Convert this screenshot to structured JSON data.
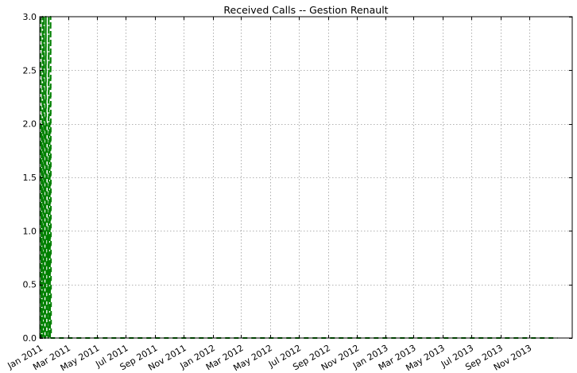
{
  "chart_data": {
    "type": "line",
    "title": "Received Calls -- Gestion Renault",
    "xlabel": "",
    "ylabel": "",
    "x_type": "date",
    "xlim": [
      "2010-12-31",
      "2014-01-31"
    ],
    "ylim": [
      0,
      3
    ],
    "y_ticks": [
      0.0,
      0.5,
      1.0,
      1.5,
      2.0,
      2.5,
      3.0
    ],
    "y_tick_labels": [
      "0.0",
      "0.5",
      "1.0",
      "1.5",
      "2.0",
      "2.5",
      "3.0"
    ],
    "x_ticks": [
      "2011-01-01",
      "2011-03-01",
      "2011-05-01",
      "2011-07-01",
      "2011-09-01",
      "2011-11-01",
      "2012-01-01",
      "2012-03-01",
      "2012-05-01",
      "2012-07-01",
      "2012-09-01",
      "2012-11-01",
      "2013-01-01",
      "2013-03-01",
      "2013-05-01",
      "2013-07-01",
      "2013-09-01",
      "2013-11-01"
    ],
    "x_tick_labels": [
      "Jan 2011",
      "Mar 2011",
      "May 2011",
      "Jul 2011",
      "Sep 2011",
      "Nov 2011",
      "Jan 2012",
      "Mar 2012",
      "May 2012",
      "Jul 2012",
      "Sep 2012",
      "Nov 2012",
      "Jan 2013",
      "Mar 2013",
      "May 2013",
      "Jul 2013",
      "Sep 2013",
      "Nov 2013"
    ],
    "grid": true,
    "grid_style": "dotted",
    "series": [
      {
        "color": "#008000",
        "line_style": "dashed",
        "points": [
          {
            "x": "2011-01-01",
            "y": 0
          },
          {
            "x": "2011-01-02",
            "y": 3
          },
          {
            "x": "2011-01-03",
            "y": 0
          },
          {
            "x": "2011-01-04",
            "y": 2
          },
          {
            "x": "2011-01-05",
            "y": 0
          },
          {
            "x": "2011-01-06",
            "y": 3
          },
          {
            "x": "2011-01-07",
            "y": 1
          },
          {
            "x": "2011-01-08",
            "y": 0
          },
          {
            "x": "2011-01-09",
            "y": 3
          },
          {
            "x": "2011-01-10",
            "y": 0
          },
          {
            "x": "2011-01-11",
            "y": 2
          },
          {
            "x": "2011-01-12",
            "y": 0
          },
          {
            "x": "2011-01-13",
            "y": 3
          },
          {
            "x": "2011-01-14",
            "y": 0
          },
          {
            "x": "2011-01-15",
            "y": 2
          },
          {
            "x": "2011-01-16",
            "y": 0
          },
          {
            "x": "2011-01-17",
            "y": 1
          },
          {
            "x": "2011-01-18",
            "y": 0
          },
          {
            "x": "2011-01-19",
            "y": 3
          },
          {
            "x": "2011-01-20",
            "y": 0
          },
          {
            "x": "2011-01-21",
            "y": 2
          },
          {
            "x": "2011-01-22",
            "y": 0
          },
          {
            "x": "2011-01-23",
            "y": 3
          },
          {
            "x": "2011-01-24",
            "y": 0
          },
          {
            "x": "2011-01-25",
            "y": 0
          },
          {
            "x": "2013-12-31",
            "y": 0
          }
        ]
      }
    ]
  }
}
